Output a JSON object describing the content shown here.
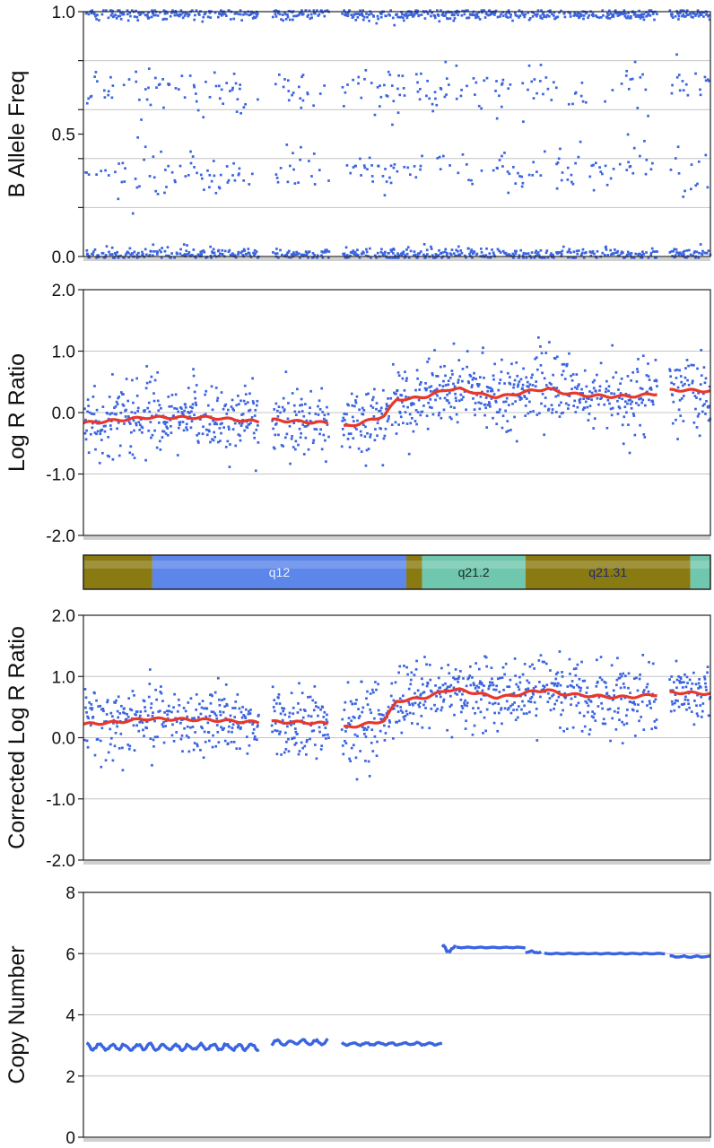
{
  "colors": {
    "points": "#3a64e0",
    "trend": "#e8382b",
    "gridline": "#c4c4c4",
    "frame": "#222222",
    "band_gpos": "#8a7a12",
    "band_gneg": "#5c86ea",
    "band_acen": "#6fc7ad"
  },
  "chart_data": [
    {
      "id": "baf",
      "type": "scatter",
      "ylabel": "B Allele Freq",
      "ylim": [
        0,
        1
      ],
      "yticks": [
        {
          "v": 0,
          "label": "0.0"
        },
        {
          "v": 0.5,
          "label": "0.5"
        },
        {
          "v": 1,
          "label": "1.0"
        }
      ],
      "minor_ticks": [
        0.2,
        0.4,
        0.6,
        0.8
      ],
      "gridlines": [
        0.2,
        0.4,
        0.6,
        0.8
      ],
      "x_range": [
        0,
        100
      ],
      "gaps": [
        [
          28.0,
          30.0
        ],
        [
          39.2,
          41.2
        ],
        [
          91.5,
          93.5
        ]
      ],
      "clusters": [
        {
          "y": 0.99,
          "spread": 0.012,
          "density": 1.0
        },
        {
          "y": 0.68,
          "spread": 0.05,
          "density": 0.35
        },
        {
          "y": 0.35,
          "spread": 0.05,
          "density": 0.35
        },
        {
          "y": 0.01,
          "spread": 0.012,
          "density": 1.0
        }
      ]
    },
    {
      "id": "lrr",
      "type": "scatter",
      "ylabel": "Log R Ratio",
      "ylim": [
        -2,
        2
      ],
      "yticks": [
        {
          "v": -2,
          "label": "-2.0"
        },
        {
          "v": -1,
          "label": "-1.0"
        },
        {
          "v": 0,
          "label": "0.0"
        },
        {
          "v": 1,
          "label": "1.0"
        },
        {
          "v": 2,
          "label": "2.0"
        }
      ],
      "gridlines": [
        -1,
        0,
        1
      ],
      "x_range": [
        0,
        100
      ],
      "gaps": [
        [
          28.0,
          30.0
        ],
        [
          39.2,
          41.2
        ],
        [
          91.5,
          93.5
        ]
      ],
      "trend": {
        "x": [
          0,
          5,
          10,
          20,
          28,
          30,
          35,
          39,
          41,
          44,
          48,
          50,
          52,
          55,
          58,
          60,
          62,
          64,
          66,
          68,
          70,
          72,
          74,
          76,
          80,
          85,
          88,
          91,
          94,
          100
        ],
        "y": [
          -0.17,
          -0.13,
          -0.08,
          -0.08,
          -0.15,
          -0.12,
          -0.15,
          -0.17,
          -0.24,
          -0.18,
          -0.05,
          0.22,
          0.22,
          0.27,
          0.38,
          0.38,
          0.34,
          0.28,
          0.26,
          0.28,
          0.33,
          0.36,
          0.39,
          0.33,
          0.28,
          0.26,
          0.27,
          0.3,
          0.37,
          0.35
        ]
      },
      "noise": 0.28
    },
    {
      "id": "ideogram",
      "type": "ideogram",
      "x_range": [
        0,
        100
      ],
      "bands": [
        {
          "start": 0,
          "end": 11,
          "stain": "gpos",
          "label": ""
        },
        {
          "start": 11,
          "end": 51.5,
          "stain": "gneg",
          "label": "q12"
        },
        {
          "start": 51.5,
          "end": 54.0,
          "stain": "gpos",
          "label": ""
        },
        {
          "start": 54.0,
          "end": 70.5,
          "stain": "acen",
          "label": "q21.2"
        },
        {
          "start": 70.5,
          "end": 96.8,
          "stain": "gpos",
          "label": "q21.31"
        },
        {
          "start": 96.8,
          "end": 100,
          "stain": "acen",
          "label": ""
        }
      ]
    },
    {
      "id": "clrr",
      "type": "scatter",
      "ylabel": "Corrected Log R Ratio",
      "ylim": [
        -2,
        2
      ],
      "yticks": [
        {
          "v": -2,
          "label": "-2.0"
        },
        {
          "v": -1,
          "label": "-1.0"
        },
        {
          "v": 0,
          "label": "0.0"
        },
        {
          "v": 1,
          "label": "1.0"
        },
        {
          "v": 2,
          "label": "2.0"
        }
      ],
      "gridlines": [
        -1,
        0,
        1
      ],
      "x_range": [
        0,
        100
      ],
      "gaps": [
        [
          28.0,
          30.0
        ],
        [
          39.2,
          41.2
        ],
        [
          91.5,
          93.5
        ]
      ],
      "trend": {
        "x": [
          0,
          5,
          10,
          20,
          28,
          30,
          35,
          39,
          41,
          44,
          48,
          50,
          52,
          55,
          58,
          60,
          62,
          64,
          66,
          68,
          70,
          72,
          74,
          76,
          80,
          85,
          88,
          91,
          94,
          100
        ],
        "y": [
          0.22,
          0.25,
          0.31,
          0.29,
          0.25,
          0.26,
          0.25,
          0.23,
          0.16,
          0.2,
          0.28,
          0.6,
          0.62,
          0.67,
          0.78,
          0.78,
          0.74,
          0.7,
          0.66,
          0.68,
          0.72,
          0.76,
          0.78,
          0.72,
          0.69,
          0.66,
          0.67,
          0.7,
          0.74,
          0.72
        ]
      },
      "noise": 0.28
    },
    {
      "id": "cn",
      "type": "line",
      "ylabel": "Copy Number",
      "ylim": [
        0,
        8
      ],
      "yticks": [
        {
          "v": 0,
          "label": "0"
        },
        {
          "v": 2,
          "label": "2"
        },
        {
          "v": 4,
          "label": "4"
        },
        {
          "v": 6,
          "label": "6"
        },
        {
          "v": 8,
          "label": "8"
        }
      ],
      "gridlines": [
        2,
        4,
        6
      ],
      "x_range": [
        0,
        100
      ],
      "segments": [
        {
          "x0": 0.5,
          "x1": 28.0,
          "base": 2.95,
          "wobble": 0.09
        },
        {
          "x0": 30.0,
          "x1": 39.2,
          "base": 3.1,
          "wobble": 0.08
        },
        {
          "x0": 41.2,
          "x1": 57.2,
          "base": 3.05,
          "wobble": 0.04
        },
        {
          "x0": 57.2,
          "x1": 59.5,
          "base": 6.15,
          "wobble": 0.1
        },
        {
          "x0": 59.5,
          "x1": 70.5,
          "base": 6.2,
          "wobble": 0.01
        },
        {
          "x0": 70.5,
          "x1": 73.0,
          "base": 6.05,
          "wobble": 0.03
        },
        {
          "x0": 73.5,
          "x1": 92.8,
          "base": 6.0,
          "wobble": 0.01
        },
        {
          "x0": 93.5,
          "x1": 100,
          "base": 5.9,
          "wobble": 0.02
        }
      ]
    }
  ]
}
